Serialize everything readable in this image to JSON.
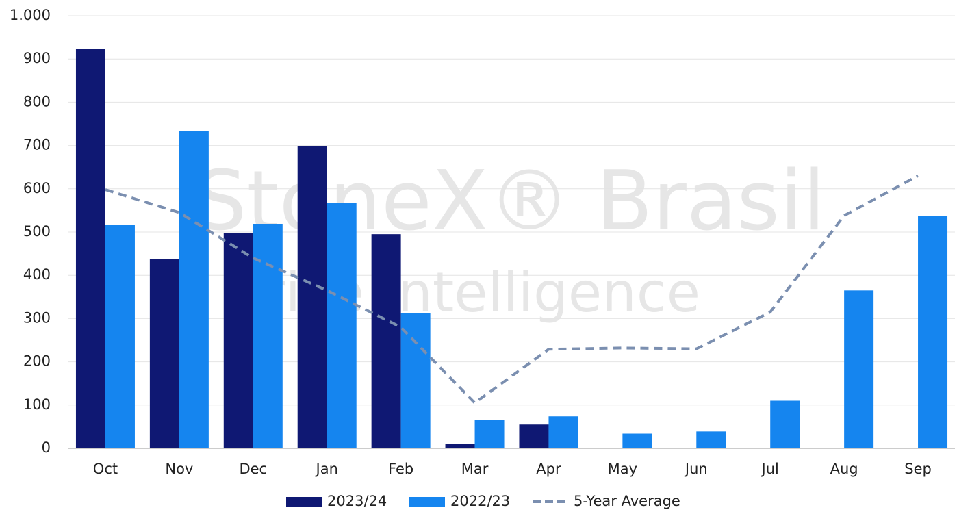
{
  "chart_data": {
    "type": "bar",
    "watermark": [
      "StoneX® Brasil",
      "Price Intelligence"
    ],
    "categories": [
      "Oct",
      "Nov",
      "Dec",
      "Jan",
      "Feb",
      "Mar",
      "Apr",
      "May",
      "Jun",
      "Jul",
      "Aug",
      "Sep"
    ],
    "series": [
      {
        "name": "2023/24",
        "type": "bar",
        "color": "#0f1873",
        "values": [
          924,
          437,
          498,
          698,
          495,
          10,
          55,
          null,
          null,
          null,
          null,
          null
        ]
      },
      {
        "name": "2022/23",
        "type": "bar",
        "color": "#1585ef",
        "values": [
          517,
          733,
          519,
          568,
          312,
          66,
          74,
          34,
          39,
          110,
          365,
          537
        ]
      },
      {
        "name": "5-Year Average",
        "type": "line",
        "color": "#7b8fb0",
        "dashed": true,
        "values": [
          598,
          545,
          440,
          365,
          280,
          105,
          229,
          232,
          230,
          315,
          538,
          630
        ]
      }
    ],
    "ylim": [
      0,
      1000
    ],
    "yticks": [
      0,
      100,
      200,
      300,
      400,
      500,
      600,
      700,
      800,
      900,
      {
        "value": 1000,
        "label": "1.000"
      }
    ],
    "grid": true,
    "legend": "bottom"
  }
}
